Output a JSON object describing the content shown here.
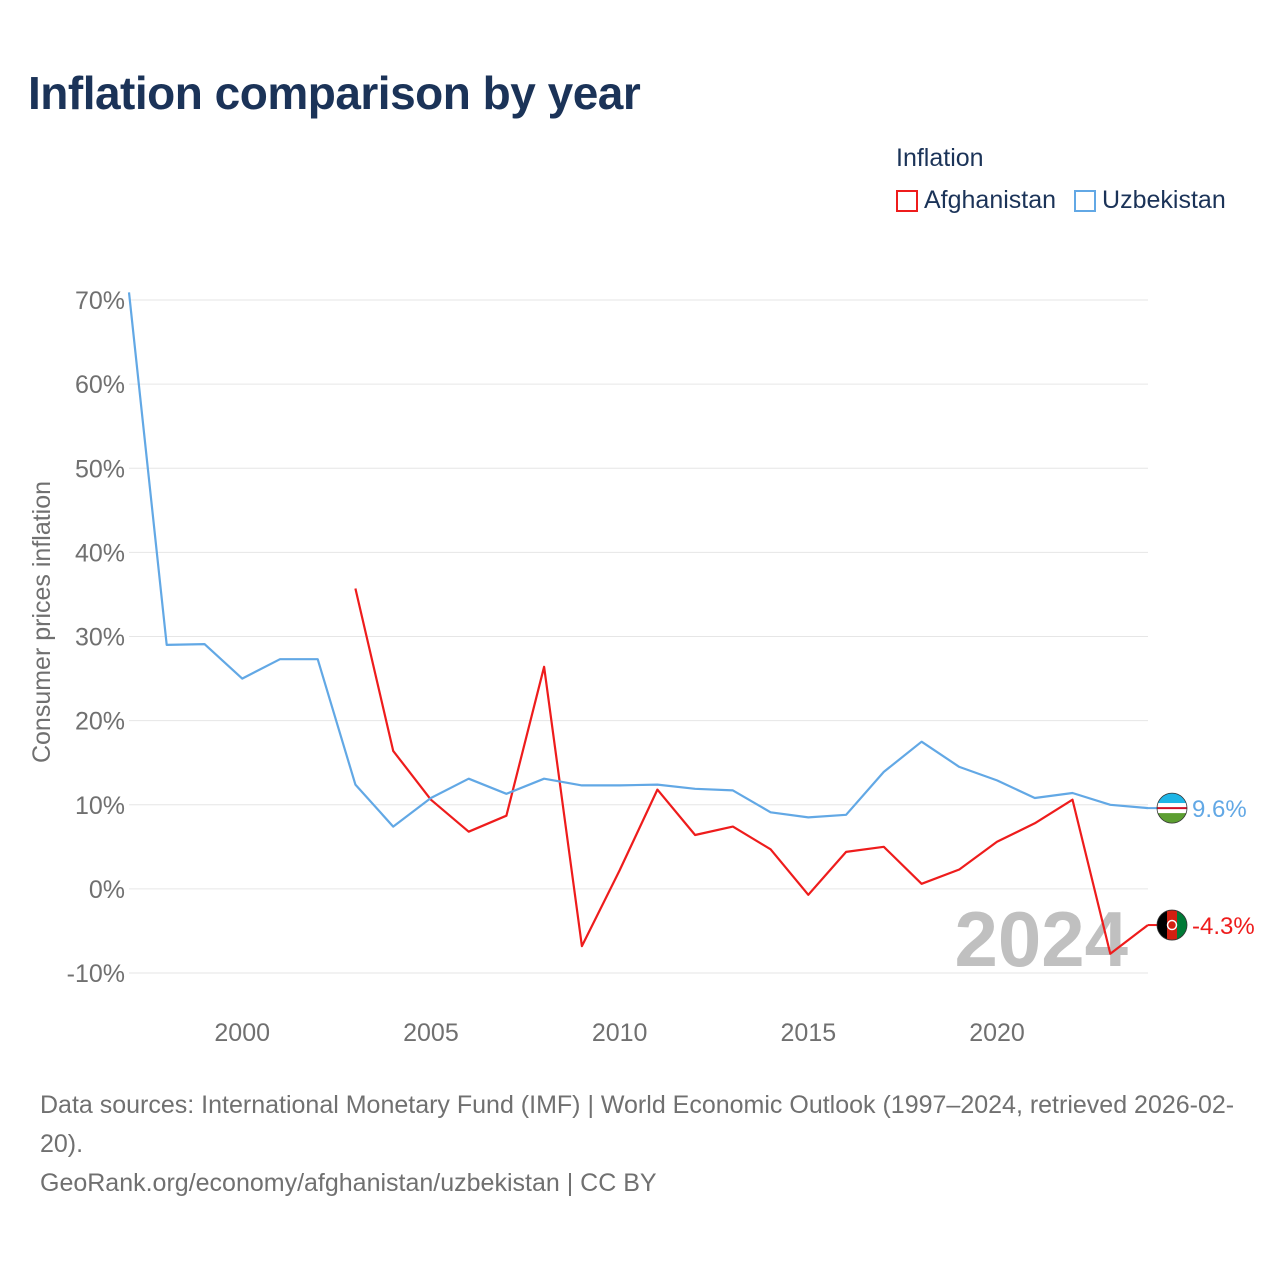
{
  "title": "Inflation comparison by year",
  "legend": {
    "title": "Inflation",
    "items": [
      {
        "label": "Afghanistan",
        "color": "#ee1c1c"
      },
      {
        "label": "Uzbekistan",
        "color": "#62a8e5"
      }
    ]
  },
  "chart_data": {
    "type": "line",
    "title": "Inflation comparison by year",
    "ylabel": "Consumer prices inflation",
    "xlabel": "",
    "xlim": [
      1997,
      2024
    ],
    "ylim": [
      -10,
      70
    ],
    "y_ticks": [
      -10,
      0,
      10,
      20,
      30,
      40,
      50,
      60,
      70
    ],
    "y_tick_labels": [
      "-10%",
      "0%",
      "10%",
      "20%",
      "30%",
      "40%",
      "50%",
      "60%",
      "70%"
    ],
    "x_ticks": [
      2000,
      2005,
      2010,
      2015,
      2020
    ],
    "x_tick_labels": [
      "2000",
      "2005",
      "2010",
      "2015",
      "2020"
    ],
    "grid": true,
    "watermark": "2024",
    "series": [
      {
        "name": "Afghanistan",
        "color": "#ee1c1c",
        "end_label": "-4.3%",
        "x": [
          2003,
          2004,
          2005,
          2006,
          2007,
          2008,
          2009,
          2010,
          2011,
          2012,
          2013,
          2014,
          2015,
          2016,
          2017,
          2018,
          2019,
          2020,
          2021,
          2022,
          2023,
          2024
        ],
        "values": [
          35.7,
          16.4,
          10.6,
          6.8,
          8.7,
          26.4,
          -6.8,
          2.2,
          11.8,
          6.4,
          7.4,
          4.7,
          -0.7,
          4.4,
          5.0,
          0.6,
          2.3,
          5.6,
          7.8,
          10.6,
          -7.7,
          -4.3
        ]
      },
      {
        "name": "Uzbekistan",
        "color": "#62a8e5",
        "end_label": "9.6%",
        "x": [
          1997,
          1998,
          1999,
          2000,
          2001,
          2002,
          2003,
          2004,
          2005,
          2006,
          2007,
          2008,
          2009,
          2010,
          2011,
          2012,
          2013,
          2014,
          2015,
          2016,
          2017,
          2018,
          2019,
          2020,
          2021,
          2022,
          2023,
          2024
        ],
        "values": [
          70.9,
          29.0,
          29.1,
          25.0,
          27.3,
          27.3,
          12.4,
          7.4,
          10.8,
          13.1,
          11.3,
          13.1,
          12.3,
          12.3,
          12.4,
          11.9,
          11.7,
          9.1,
          8.5,
          8.8,
          13.9,
          17.5,
          14.5,
          12.9,
          10.8,
          11.4,
          10.0,
          9.6
        ]
      }
    ]
  },
  "footer": {
    "sources": "Data sources: International Monetary Fund (IMF) | World Economic Outlook (1997–2024, retrieved 2026-02-20).",
    "credit": "GeoRank.org/economy/afghanistan/uzbekistan | CC BY"
  }
}
